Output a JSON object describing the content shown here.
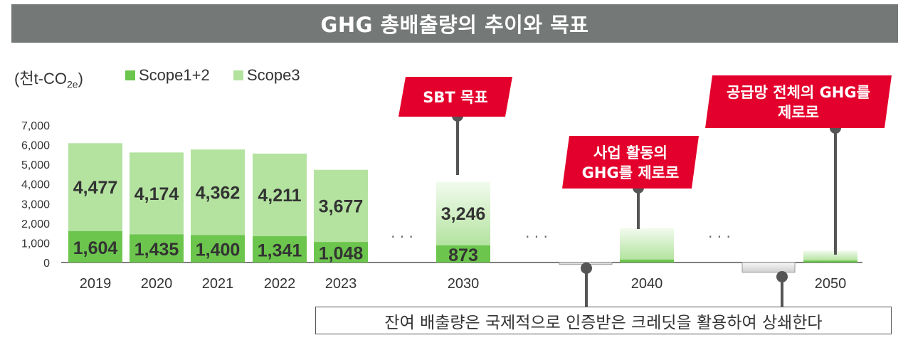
{
  "title": "GHG 총배출량의 추이와 목표",
  "unit_label": {
    "main": "(천t-CO",
    "sub": "2e",
    "close": ")"
  },
  "note": "잔여 배출량은 국제적으로 인증받은 크레딧을 활용하여 상쇄한다",
  "ellipsis": "· · ·",
  "callouts": [
    {
      "lines": [
        "SBT 목표"
      ]
    },
    {
      "lines": [
        "사업 활동의",
        "GHG를 제로로"
      ]
    },
    {
      "lines": [
        "공급망 전체의 GHG를",
        "제로로"
      ]
    }
  ],
  "colors": {
    "scope12": "#6cc54c",
    "scope3": "#b3e39f",
    "callout": "#e3002c",
    "title_bar": "#747877",
    "negative": "#d7d7d7"
  },
  "chart_data": {
    "type": "bar",
    "stacked": true,
    "categories": [
      "2019",
      "2020",
      "2021",
      "2022",
      "2023",
      "2030",
      "2040",
      "2050"
    ],
    "series": [
      {
        "name": "Scope1+2",
        "values": [
          1604,
          1435,
          1400,
          1341,
          1048,
          873,
          150,
          100
        ],
        "color": "#6cc54c"
      },
      {
        "name": "Scope3",
        "values": [
          4477,
          4174,
          4362,
          4211,
          3677,
          3246,
          1600,
          500
        ],
        "color": "#b3e39f"
      }
    ],
    "negative_offsets": {
      "2040": -100,
      "2050": -500
    },
    "data_labels": {
      "Scope1+2": [
        "1,604",
        "1,435",
        "1,400",
        "1,341",
        "1,048",
        "873",
        "",
        ""
      ],
      "Scope3": [
        "4,477",
        "4,174",
        "4,362",
        "4,211",
        "3,677",
        "3,246",
        "",
        ""
      ]
    },
    "yticks": [
      "0",
      "1,000",
      "2,000",
      "3,000",
      "4,000",
      "5,000",
      "6,000",
      "7,000"
    ],
    "ylim": [
      0,
      7000
    ],
    "grid": false,
    "legend_position": "top-left"
  }
}
